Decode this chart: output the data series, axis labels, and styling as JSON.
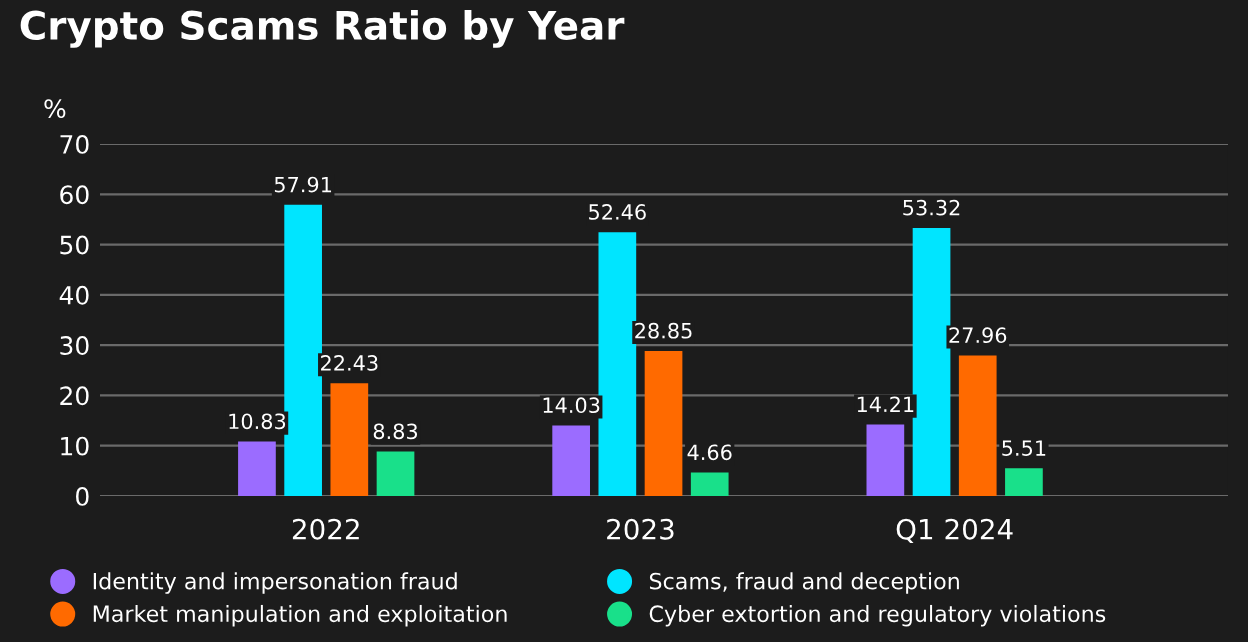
{
  "chart_data": {
    "type": "bar",
    "title": "Crypto Scams Ratio by Year",
    "ylabel": "%",
    "categories": [
      "2022",
      "2023",
      "Q1 2024"
    ],
    "series": [
      {
        "name": "Identity and impersonation fraud",
        "color": "#9b6cff",
        "values": [
          10.83,
          14.03,
          14.21
        ]
      },
      {
        "name": "Scams, fraud and deception",
        "color": "#00e5ff",
        "values": [
          57.91,
          52.46,
          53.32
        ]
      },
      {
        "name": "Market manipulation and exploitation",
        "color": "#ff6a00",
        "values": [
          22.43,
          28.85,
          27.96
        ]
      },
      {
        "name": "Cyber extortion and regulatory violations",
        "color": "#19e08a",
        "values": [
          8.83,
          4.66,
          5.51
        ]
      }
    ],
    "ylim": [
      0,
      70
    ],
    "yticks": [
      0,
      10,
      20,
      30,
      40,
      50,
      60,
      70
    ],
    "grid": "y",
    "legend": "bottom",
    "data_labels": true
  }
}
